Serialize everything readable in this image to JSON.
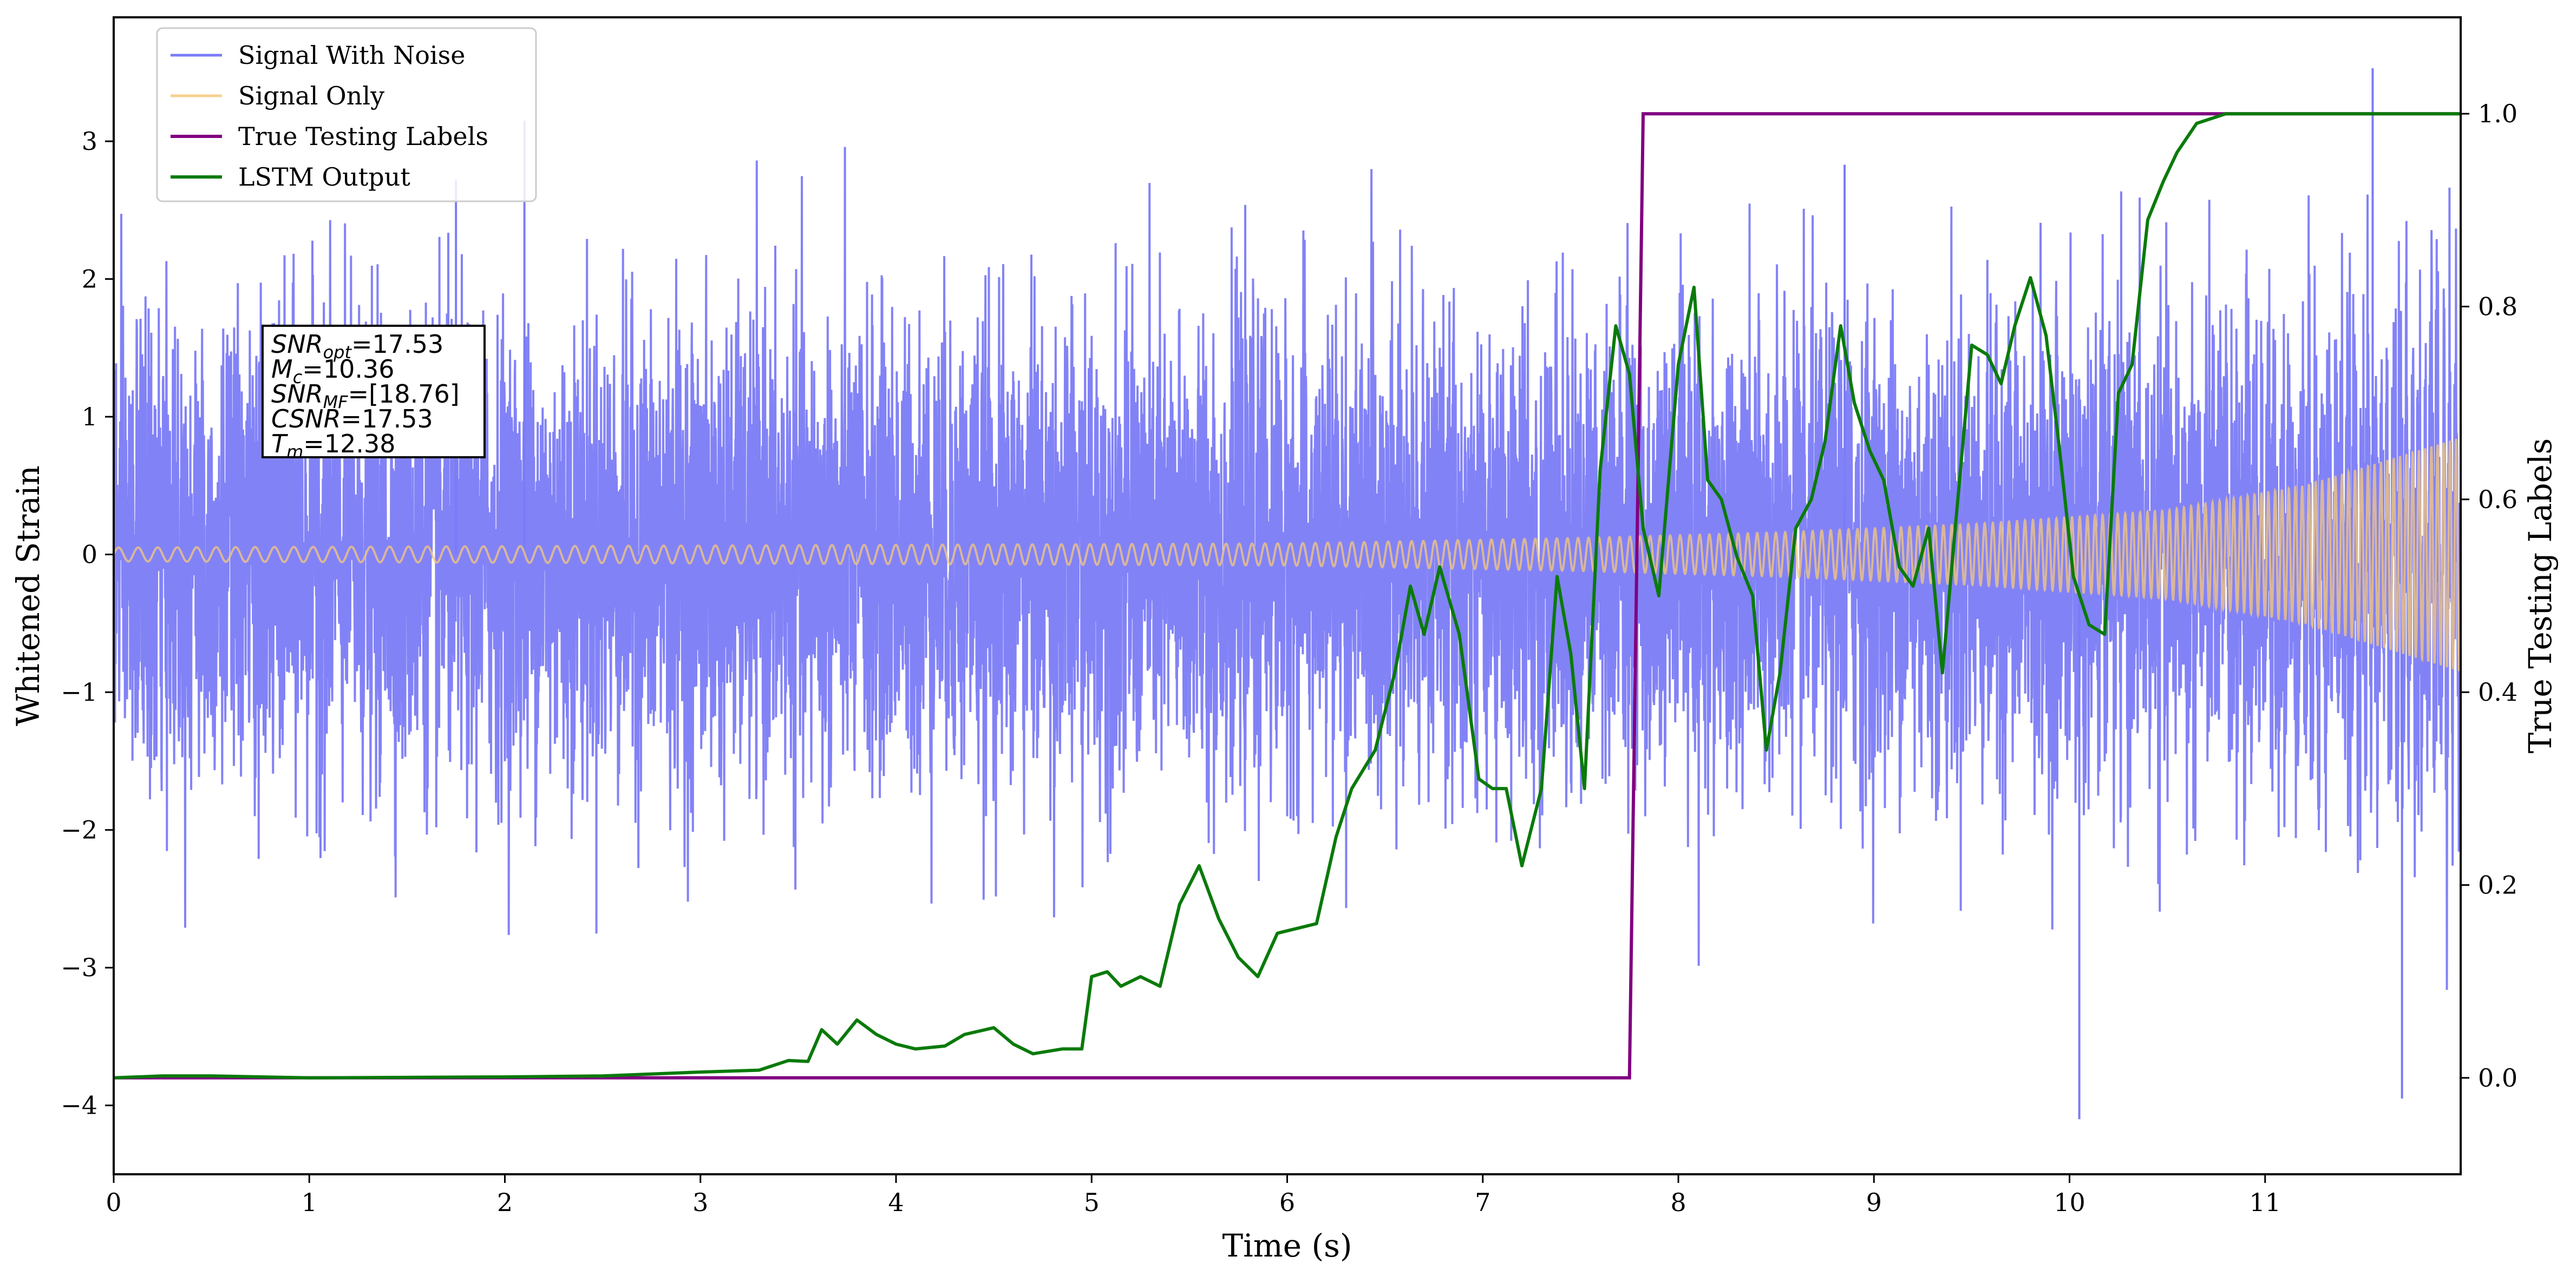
{
  "chart_data": {
    "type": "line",
    "title": "",
    "xlabel": "Time (s)",
    "ylabel": "Whitened Strain",
    "ylabel_right": "True Testing Labels",
    "xlim": [
      0,
      12
    ],
    "ylim": [
      -4.5,
      3.9
    ],
    "ylim_right": [
      -0.1,
      1.1
    ],
    "x_ticks": [
      0,
      1,
      2,
      3,
      4,
      5,
      6,
      7,
      8,
      9,
      10,
      11
    ],
    "y_ticks": [
      -4,
      -3,
      -2,
      -1,
      0,
      1,
      2,
      3
    ],
    "y_ticks_right": [
      "0.0",
      "0.2",
      "0.4",
      "0.6",
      "0.8",
      "1.0"
    ],
    "grid": false,
    "legend_position": "upper-left",
    "series": [
      {
        "name": "Signal With Noise",
        "axis": "left",
        "color": "#7b7bf7",
        "description_values": "noisy whitened strain, amplitude mostly within ±1.5 with spikes up to +3.5 and down to -4.1",
        "noise_band": [
          -1.5,
          1.5
        ],
        "extremes": [
          [
            1.75,
            2.72
          ],
          [
            2.1,
            3.15
          ],
          [
            8.85,
            2.83
          ],
          [
            10.05,
            -4.1
          ],
          [
            11.55,
            3.53
          ],
          [
            11.7,
            -3.95
          ]
        ]
      },
      {
        "name": "Signal Only",
        "axis": "left",
        "color": "#f5c87a",
        "envelope": [
          [
            0,
            0.05
          ],
          [
            4,
            0.07
          ],
          [
            6,
            0.08
          ],
          [
            7.5,
            0.12
          ],
          [
            8.5,
            0.16
          ],
          [
            9.5,
            0.22
          ],
          [
            10.5,
            0.32
          ],
          [
            11.2,
            0.5
          ],
          [
            12,
            0.85
          ]
        ],
        "cycles_per_second_start": 10,
        "cycles_per_second_end": 32
      },
      {
        "name": "True Testing  Labels",
        "axis": "right",
        "color": "#800080",
        "points": [
          [
            0,
            0.0
          ],
          [
            7.75,
            0.0
          ],
          [
            7.82,
            1.0
          ],
          [
            12,
            1.0
          ]
        ]
      },
      {
        "name": "LSTM Output",
        "axis": "right",
        "color": "#0a7a0a",
        "points": [
          [
            0,
            0.0
          ],
          [
            0.25,
            0.002
          ],
          [
            0.5,
            0.002
          ],
          [
            1.0,
            0.0
          ],
          [
            2.0,
            0.001
          ],
          [
            2.5,
            0.002
          ],
          [
            3.0,
            0.006
          ],
          [
            3.3,
            0.008
          ],
          [
            3.45,
            0.018
          ],
          [
            3.55,
            0.017
          ],
          [
            3.62,
            0.05
          ],
          [
            3.7,
            0.035
          ],
          [
            3.8,
            0.06
          ],
          [
            3.9,
            0.045
          ],
          [
            4.0,
            0.035
          ],
          [
            4.1,
            0.03
          ],
          [
            4.25,
            0.033
          ],
          [
            4.35,
            0.045
          ],
          [
            4.5,
            0.052
          ],
          [
            4.6,
            0.035
          ],
          [
            4.7,
            0.025
          ],
          [
            4.85,
            0.03
          ],
          [
            4.95,
            0.03
          ],
          [
            5.0,
            0.105
          ],
          [
            5.08,
            0.11
          ],
          [
            5.15,
            0.095
          ],
          [
            5.25,
            0.105
          ],
          [
            5.35,
            0.095
          ],
          [
            5.45,
            0.18
          ],
          [
            5.55,
            0.22
          ],
          [
            5.65,
            0.165
          ],
          [
            5.75,
            0.125
          ],
          [
            5.85,
            0.105
          ],
          [
            5.95,
            0.15
          ],
          [
            6.05,
            0.155
          ],
          [
            6.15,
            0.16
          ],
          [
            6.25,
            0.25
          ],
          [
            6.33,
            0.3
          ],
          [
            6.45,
            0.34
          ],
          [
            6.55,
            0.42
          ],
          [
            6.63,
            0.51
          ],
          [
            6.7,
            0.46
          ],
          [
            6.78,
            0.53
          ],
          [
            6.88,
            0.46
          ],
          [
            6.98,
            0.31
          ],
          [
            7.05,
            0.3
          ],
          [
            7.12,
            0.3
          ],
          [
            7.2,
            0.22
          ],
          [
            7.3,
            0.3
          ],
          [
            7.38,
            0.52
          ],
          [
            7.45,
            0.44
          ],
          [
            7.52,
            0.3
          ],
          [
            7.6,
            0.63
          ],
          [
            7.68,
            0.78
          ],
          [
            7.75,
            0.73
          ],
          [
            7.82,
            0.57
          ],
          [
            7.9,
            0.5
          ],
          [
            8.0,
            0.74
          ],
          [
            8.08,
            0.82
          ],
          [
            8.15,
            0.62
          ],
          [
            8.22,
            0.6
          ],
          [
            8.3,
            0.54
          ],
          [
            8.38,
            0.5
          ],
          [
            8.45,
            0.34
          ],
          [
            8.52,
            0.42
          ],
          [
            8.6,
            0.57
          ],
          [
            8.68,
            0.6
          ],
          [
            8.75,
            0.66
          ],
          [
            8.83,
            0.78
          ],
          [
            8.9,
            0.7
          ],
          [
            8.98,
            0.65
          ],
          [
            9.05,
            0.62
          ],
          [
            9.13,
            0.53
          ],
          [
            9.2,
            0.51
          ],
          [
            9.28,
            0.57
          ],
          [
            9.35,
            0.42
          ],
          [
            9.42,
            0.58
          ],
          [
            9.5,
            0.76
          ],
          [
            9.58,
            0.75
          ],
          [
            9.65,
            0.72
          ],
          [
            9.72,
            0.78
          ],
          [
            9.8,
            0.83
          ],
          [
            9.88,
            0.77
          ],
          [
            9.95,
            0.65
          ],
          [
            10.02,
            0.52
          ],
          [
            10.1,
            0.47
          ],
          [
            10.18,
            0.46
          ],
          [
            10.25,
            0.71
          ],
          [
            10.32,
            0.74
          ],
          [
            10.4,
            0.89
          ],
          [
            10.48,
            0.93
          ],
          [
            10.55,
            0.96
          ],
          [
            10.65,
            0.99
          ],
          [
            10.8,
            1.0
          ],
          [
            11.0,
            1.0
          ],
          [
            12.0,
            1.0
          ]
        ]
      }
    ],
    "annotation_box": {
      "lines": [
        {
          "sym": "SNR",
          "sub": "opt",
          "value": "=17.53"
        },
        {
          "sym": "M",
          "sub": "c",
          "value": "=10.36"
        },
        {
          "sym": "SNR",
          "sub": "MF",
          "value": "=[18.76]"
        },
        {
          "sym": "CSNR",
          "sub": "",
          "value": "=17.53"
        },
        {
          "sym": "T",
          "sub": "m",
          "value": "=12.38"
        }
      ]
    }
  }
}
